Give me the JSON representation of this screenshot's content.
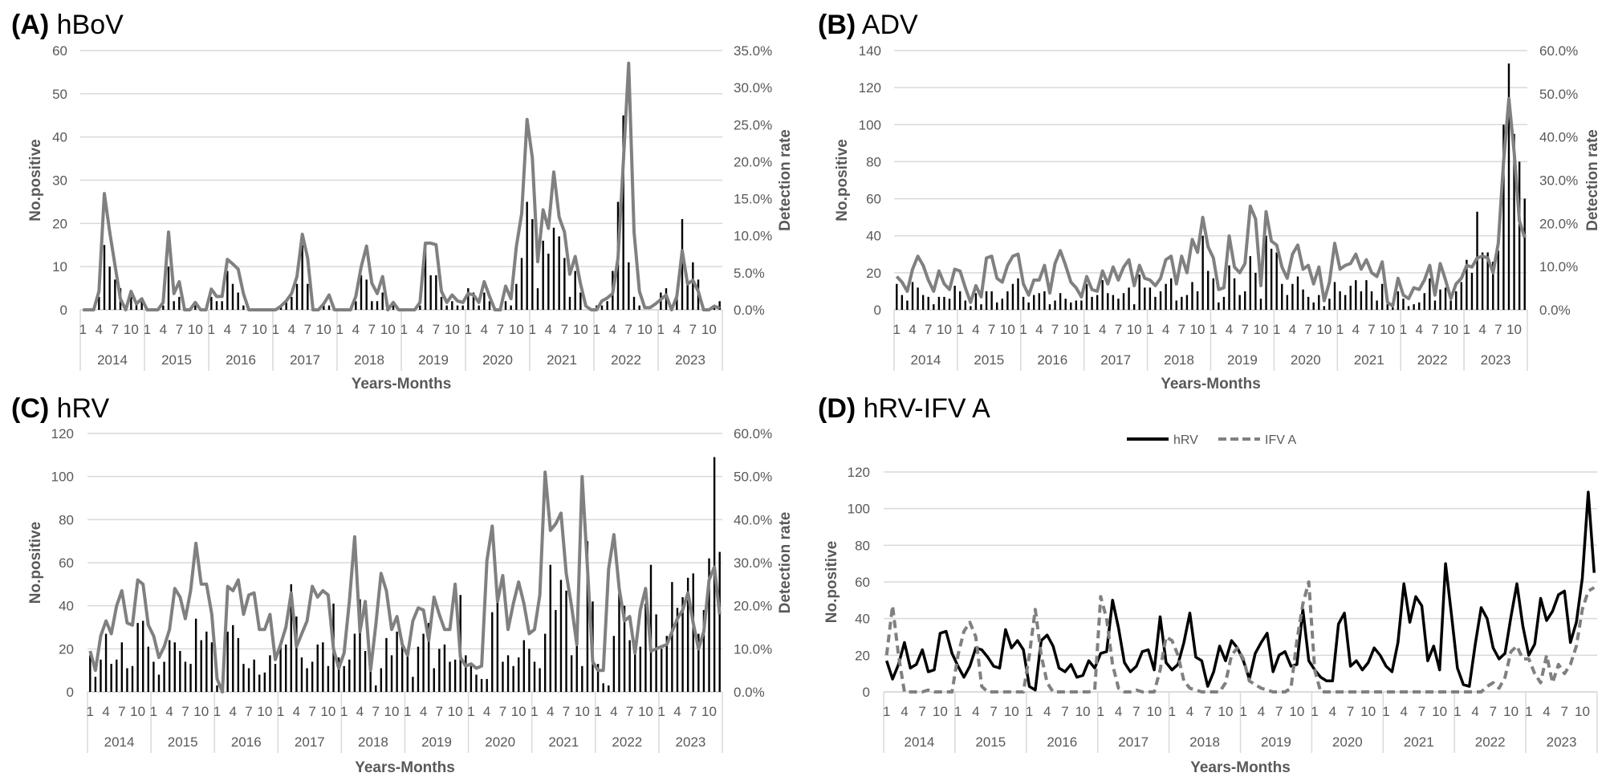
{
  "chart_data": [
    {
      "type": "bar+line",
      "panel": "(A)",
      "title": "hBoV",
      "xlabel": "Years-Months",
      "ylabel": "No.positive",
      "y2label": "Detection rate",
      "ylim": [
        0,
        60
      ],
      "y2lim": [
        0,
        35
      ],
      "yticks": [
        "0",
        "10",
        "20",
        "30",
        "40",
        "50",
        "60"
      ],
      "y2ticks": [
        "0.0%",
        "5.0%",
        "10.0%",
        "15.0%",
        "20.0%",
        "25.0%",
        "30.0%",
        "35.0%"
      ],
      "years": [
        "2014",
        "2015",
        "2016",
        "2017",
        "2018",
        "2019",
        "2020",
        "2021",
        "2022",
        "2023"
      ],
      "month_ticks": [
        "1",
        "4",
        "7",
        "10"
      ],
      "grid": true,
      "bar_color": "#000000",
      "bars": [
        0,
        0,
        0,
        3,
        15,
        10,
        7,
        5,
        1,
        3,
        2,
        2,
        0,
        0,
        0,
        1,
        10,
        2,
        3,
        0,
        0,
        1,
        0,
        0,
        3,
        2,
        2,
        9,
        6,
        4,
        1,
        0,
        0,
        0,
        0,
        0,
        0,
        1,
        2,
        3,
        6,
        15,
        6,
        0,
        0,
        1,
        1,
        0,
        0,
        0,
        0,
        2,
        8,
        7,
        2,
        2,
        4,
        0,
        1,
        0,
        0,
        0,
        0,
        1,
        15,
        8,
        8,
        3,
        1,
        2,
        1,
        1,
        5,
        4,
        1,
        4,
        2,
        0,
        0,
        2,
        1,
        6,
        12,
        25,
        21,
        5,
        16,
        13,
        19,
        17,
        12,
        3,
        9,
        4,
        0,
        0,
        1,
        1,
        2,
        9,
        25,
        45,
        11,
        3,
        1,
        0,
        0,
        0,
        4,
        5,
        0,
        3,
        21,
        6,
        11,
        7,
        0,
        0,
        1,
        2
      ],
      "lines": [
        {
          "axis": "right",
          "color": "#808080",
          "dash": false,
          "values": [
            0,
            0,
            0,
            2.5,
            15.7,
            10.5,
            6,
            1.5,
            0,
            2.5,
            0.8,
            1.5,
            0,
            0,
            0,
            1,
            10.5,
            2.2,
            3.8,
            0,
            0,
            1,
            0,
            0,
            2.8,
            1.8,
            1.8,
            6.8,
            6.2,
            5.5,
            2.2,
            0,
            0,
            0,
            0,
            0,
            0,
            0.5,
            1.2,
            2.2,
            4.5,
            10.2,
            7,
            0,
            0,
            0.8,
            2,
            0,
            0,
            0,
            0,
            1.8,
            5.8,
            8.6,
            3.6,
            2.2,
            4.5,
            0,
            1,
            0,
            0,
            0,
            0,
            1,
            9,
            9,
            8.8,
            2.5,
            1,
            2,
            1.2,
            1,
            2.2,
            2,
            1,
            3.8,
            1.8,
            0,
            0,
            3.2,
            1.5,
            8.5,
            13,
            25.7,
            20.5,
            6.5,
            13.5,
            11,
            18.6,
            12.5,
            10.5,
            4.8,
            7.2,
            3.5,
            0.5,
            0,
            0,
            1.2,
            1.6,
            2.2,
            7,
            20,
            33.3,
            10.5,
            2.5,
            0.3,
            0.3,
            0.8,
            1.4,
            2,
            0,
            1.8,
            8,
            3.5,
            4,
            2.5,
            0,
            0,
            0.5,
            0.2
          ]
        }
      ]
    },
    {
      "type": "bar+line",
      "panel": "(B)",
      "title": "ADV",
      "xlabel": "Years-Months",
      "ylabel": "No.positive",
      "y2label": "Detection rate",
      "ylim": [
        0,
        140
      ],
      "y2lim": [
        0,
        60
      ],
      "yticks": [
        "0",
        "20",
        "40",
        "60",
        "80",
        "100",
        "120",
        "140"
      ],
      "y2ticks": [
        "0.0%",
        "10.0%",
        "20.0%",
        "30.0%",
        "40.0%",
        "50.0%",
        "60.0%"
      ],
      "years": [
        "2014",
        "2015",
        "2016",
        "2017",
        "2018",
        "2019",
        "2020",
        "2021",
        "2022",
        "2023"
      ],
      "month_ticks": [
        "1",
        "4",
        "7",
        "10"
      ],
      "grid": true,
      "bar_color": "#000000",
      "bars": [
        14,
        8,
        5,
        15,
        12,
        8,
        7,
        3,
        7,
        7,
        6,
        13,
        10,
        5,
        2,
        9,
        3,
        10,
        10,
        4,
        6,
        10,
        14,
        17,
        7,
        4,
        8,
        9,
        10,
        3,
        5,
        9,
        6,
        4,
        5,
        5,
        14,
        7,
        8,
        16,
        9,
        8,
        6,
        9,
        12,
        3,
        19,
        12,
        12,
        7,
        10,
        14,
        17,
        5,
        7,
        8,
        15,
        10,
        40,
        21,
        17,
        4,
        7,
        24,
        17,
        8,
        10,
        29,
        20,
        6,
        40,
        33,
        31,
        14,
        8,
        14,
        18,
        11,
        7,
        4,
        8,
        2,
        6,
        15,
        10,
        8,
        13,
        16,
        10,
        16,
        10,
        5,
        14,
        3,
        2,
        10,
        6,
        2,
        3,
        4,
        9,
        17,
        5,
        11,
        12,
        5,
        10,
        15,
        27,
        20,
        53,
        31,
        31,
        26,
        32,
        100,
        133,
        95,
        80,
        60
      ],
      "lines": [
        {
          "axis": "right",
          "color": "#808080",
          "dash": false,
          "values": [
            7.7,
            6.4,
            4.3,
            9.4,
            12.4,
            10.3,
            6.9,
            4.3,
            9,
            6,
            4.7,
            9.4,
            9,
            5.1,
            1.7,
            5.6,
            3,
            12,
            12.4,
            7.3,
            6.4,
            10.3,
            12.4,
            12.9,
            6,
            3.4,
            6.9,
            6.9,
            10.3,
            3.9,
            10.7,
            13.7,
            10.3,
            6.4,
            5.1,
            3,
            7.7,
            4.7,
            4.3,
            9,
            6,
            9.9,
            6.9,
            9.9,
            11.6,
            5.6,
            10.3,
            7.3,
            6.9,
            5.6,
            7.3,
            11.6,
            12.4,
            6,
            12.4,
            8.6,
            16.3,
            13.3,
            21.4,
            14.6,
            12,
            4.7,
            5.1,
            17.1,
            9.9,
            8.6,
            10.7,
            24,
            21,
            5.6,
            22.7,
            15.9,
            15,
            9.9,
            7.3,
            12.9,
            15,
            9.4,
            10.3,
            6,
            9.9,
            2.1,
            6.4,
            15.4,
            9.4,
            10.3,
            10.7,
            12.9,
            9.4,
            11.6,
            8.6,
            7.7,
            11.1,
            1.7,
            0.9,
            7.3,
            3.4,
            2.6,
            5.1,
            4.7,
            6.9,
            10.3,
            3.4,
            10.7,
            6.9,
            2.6,
            6,
            7.3,
            10.3,
            9.9,
            12,
            12.4,
            12,
            8.6,
            15.4,
            34.3,
            48.9,
            36.4,
            20.6,
            16.7
          ]
        }
      ]
    },
    {
      "type": "bar+line",
      "panel": "(C)",
      "title": "hRV",
      "xlabel": "Years-Months",
      "ylabel": "No.positive",
      "y2label": "Detection rate",
      "ylim": [
        0,
        120
      ],
      "y2lim": [
        0,
        60
      ],
      "yticks": [
        "0",
        "20",
        "40",
        "60",
        "80",
        "100",
        "120"
      ],
      "y2ticks": [
        "0.0%",
        "10.0%",
        "20.0%",
        "30.0%",
        "40.0%",
        "50.0%",
        "60.0%"
      ],
      "years": [
        "2014",
        "2015",
        "2016",
        "2017",
        "2018",
        "2019",
        "2020",
        "2021",
        "2022",
        "2023"
      ],
      "month_ticks": [
        "1",
        "4",
        "7",
        "10"
      ],
      "grid": true,
      "bar_color": "#000000",
      "bars": [
        17,
        7,
        15,
        27,
        13,
        15,
        23,
        11,
        12,
        32,
        33,
        21,
        14,
        8,
        14,
        24,
        23,
        19,
        14,
        13,
        34,
        24,
        28,
        23,
        3,
        1,
        28,
        31,
        25,
        13,
        11,
        15,
        8,
        9,
        17,
        13,
        21,
        22,
        50,
        35,
        16,
        11,
        14,
        22,
        23,
        12,
        41,
        16,
        12,
        15,
        27,
        43,
        19,
        17,
        3,
        11,
        25,
        17,
        28,
        24,
        17,
        7,
        21,
        27,
        32,
        11,
        20,
        22,
        14,
        15,
        45,
        17,
        12,
        8,
        6,
        6,
        37,
        43,
        14,
        17,
        12,
        16,
        24,
        20,
        14,
        11,
        27,
        59,
        38,
        52,
        47,
        17,
        25,
        12,
        70,
        42,
        13,
        4,
        3,
        26,
        46,
        40,
        24,
        18,
        21,
        41,
        59,
        36,
        20,
        26,
        51,
        39,
        44,
        53,
        55,
        27,
        38,
        62,
        109,
        65
      ],
      "lines": [
        {
          "axis": "right",
          "color": "#808080",
          "dash": false,
          "values": [
            9.5,
            5,
            13,
            16.5,
            13.5,
            20,
            23.5,
            16,
            15.5,
            26,
            25,
            15.5,
            13,
            8,
            10.5,
            14.5,
            24,
            22,
            17,
            23.5,
            34.5,
            25,
            25,
            18,
            3,
            0,
            24.5,
            23.5,
            26,
            18,
            22.5,
            23,
            14.5,
            14.5,
            18,
            7.5,
            11,
            15,
            23,
            10.5,
            13.5,
            16.5,
            24.5,
            22,
            23.5,
            22.5,
            10,
            5.5,
            9,
            21,
            36,
            14,
            21,
            5,
            15.5,
            27.5,
            23.5,
            14.5,
            17.5,
            11,
            8.5,
            16.5,
            19.5,
            19,
            12,
            22,
            18,
            14.5,
            14.5,
            25,
            8,
            6,
            6.5,
            5.5,
            6,
            30.5,
            38.5,
            21,
            27,
            14.5,
            20.5,
            25.5,
            20.5,
            13.5,
            14.5,
            22.5,
            51,
            37.5,
            39,
            41.5,
            27.5,
            20,
            11,
            50,
            29,
            7,
            5,
            5,
            28.5,
            36.5,
            24,
            16.5,
            17.5,
            9,
            19,
            24,
            9.5,
            10,
            10.5,
            11,
            14,
            17,
            19,
            23,
            16,
            10,
            14,
            26,
            29,
            18
          ]
        }
      ]
    },
    {
      "type": "line",
      "panel": "(D)",
      "title": "hRV-IFV A",
      "xlabel": "Years-Months",
      "ylabel": "No.positive",
      "ylim": [
        0,
        120
      ],
      "yticks": [
        "0",
        "20",
        "40",
        "60",
        "80",
        "100",
        "120"
      ],
      "years": [
        "2014",
        "2015",
        "2016",
        "2017",
        "2018",
        "2019",
        "2020",
        "2021",
        "2022",
        "2023"
      ],
      "month_ticks": [
        "1",
        "4",
        "7",
        "10"
      ],
      "grid": true,
      "legend_position": "top-center",
      "lines": [
        {
          "name": "hRV",
          "axis": "left",
          "color": "#000000",
          "dash": false,
          "values": [
            17,
            7,
            15,
            27,
            13,
            15,
            23,
            11,
            12,
            32,
            33,
            21,
            14,
            8,
            14,
            24,
            23,
            19,
            14,
            13,
            34,
            24,
            28,
            23,
            3,
            1,
            28,
            31,
            25,
            13,
            11,
            15,
            8,
            9,
            17,
            13,
            21,
            22,
            50,
            35,
            16,
            11,
            14,
            22,
            23,
            12,
            41,
            16,
            12,
            15,
            27,
            43,
            19,
            17,
            3,
            11,
            25,
            17,
            28,
            24,
            17,
            7,
            21,
            27,
            32,
            11,
            20,
            22,
            14,
            15,
            45,
            17,
            12,
            8,
            6,
            6,
            37,
            43,
            14,
            17,
            12,
            16,
            24,
            20,
            14,
            11,
            27,
            59,
            38,
            52,
            47,
            17,
            25,
            12,
            70,
            42,
            13,
            4,
            3,
            26,
            46,
            40,
            24,
            18,
            21,
            41,
            59,
            36,
            20,
            26,
            51,
            39,
            44,
            53,
            55,
            27,
            38,
            62,
            109,
            65
          ]
        },
        {
          "name": "IFV A",
          "axis": "left",
          "color": "#808080",
          "dash": true,
          "values": [
            20,
            47,
            20,
            0,
            0,
            0,
            0,
            1,
            0,
            0,
            0,
            0,
            20,
            33,
            38,
            30,
            3,
            0,
            0,
            0,
            0,
            0,
            0,
            0,
            20,
            45,
            20,
            5,
            0,
            0,
            0,
            0,
            0,
            0,
            0,
            1,
            52,
            40,
            15,
            2,
            0,
            0,
            1,
            0,
            0,
            0,
            12,
            30,
            28,
            20,
            6,
            2,
            1,
            0,
            0,
            0,
            0,
            5,
            20,
            24,
            18,
            6,
            4,
            2,
            1,
            0,
            0,
            0,
            2,
            28,
            48,
            60,
            12,
            0,
            0,
            0,
            0,
            0,
            0,
            0,
            0,
            0,
            0,
            0,
            0,
            0,
            0,
            0,
            0,
            0,
            0,
            0,
            0,
            0,
            0,
            0,
            0,
            0,
            0,
            0,
            0,
            3,
            5,
            2,
            8,
            22,
            25,
            18,
            18,
            10,
            5,
            20,
            5,
            15,
            10,
            15,
            25,
            45,
            55,
            57
          ]
        }
      ]
    }
  ]
}
